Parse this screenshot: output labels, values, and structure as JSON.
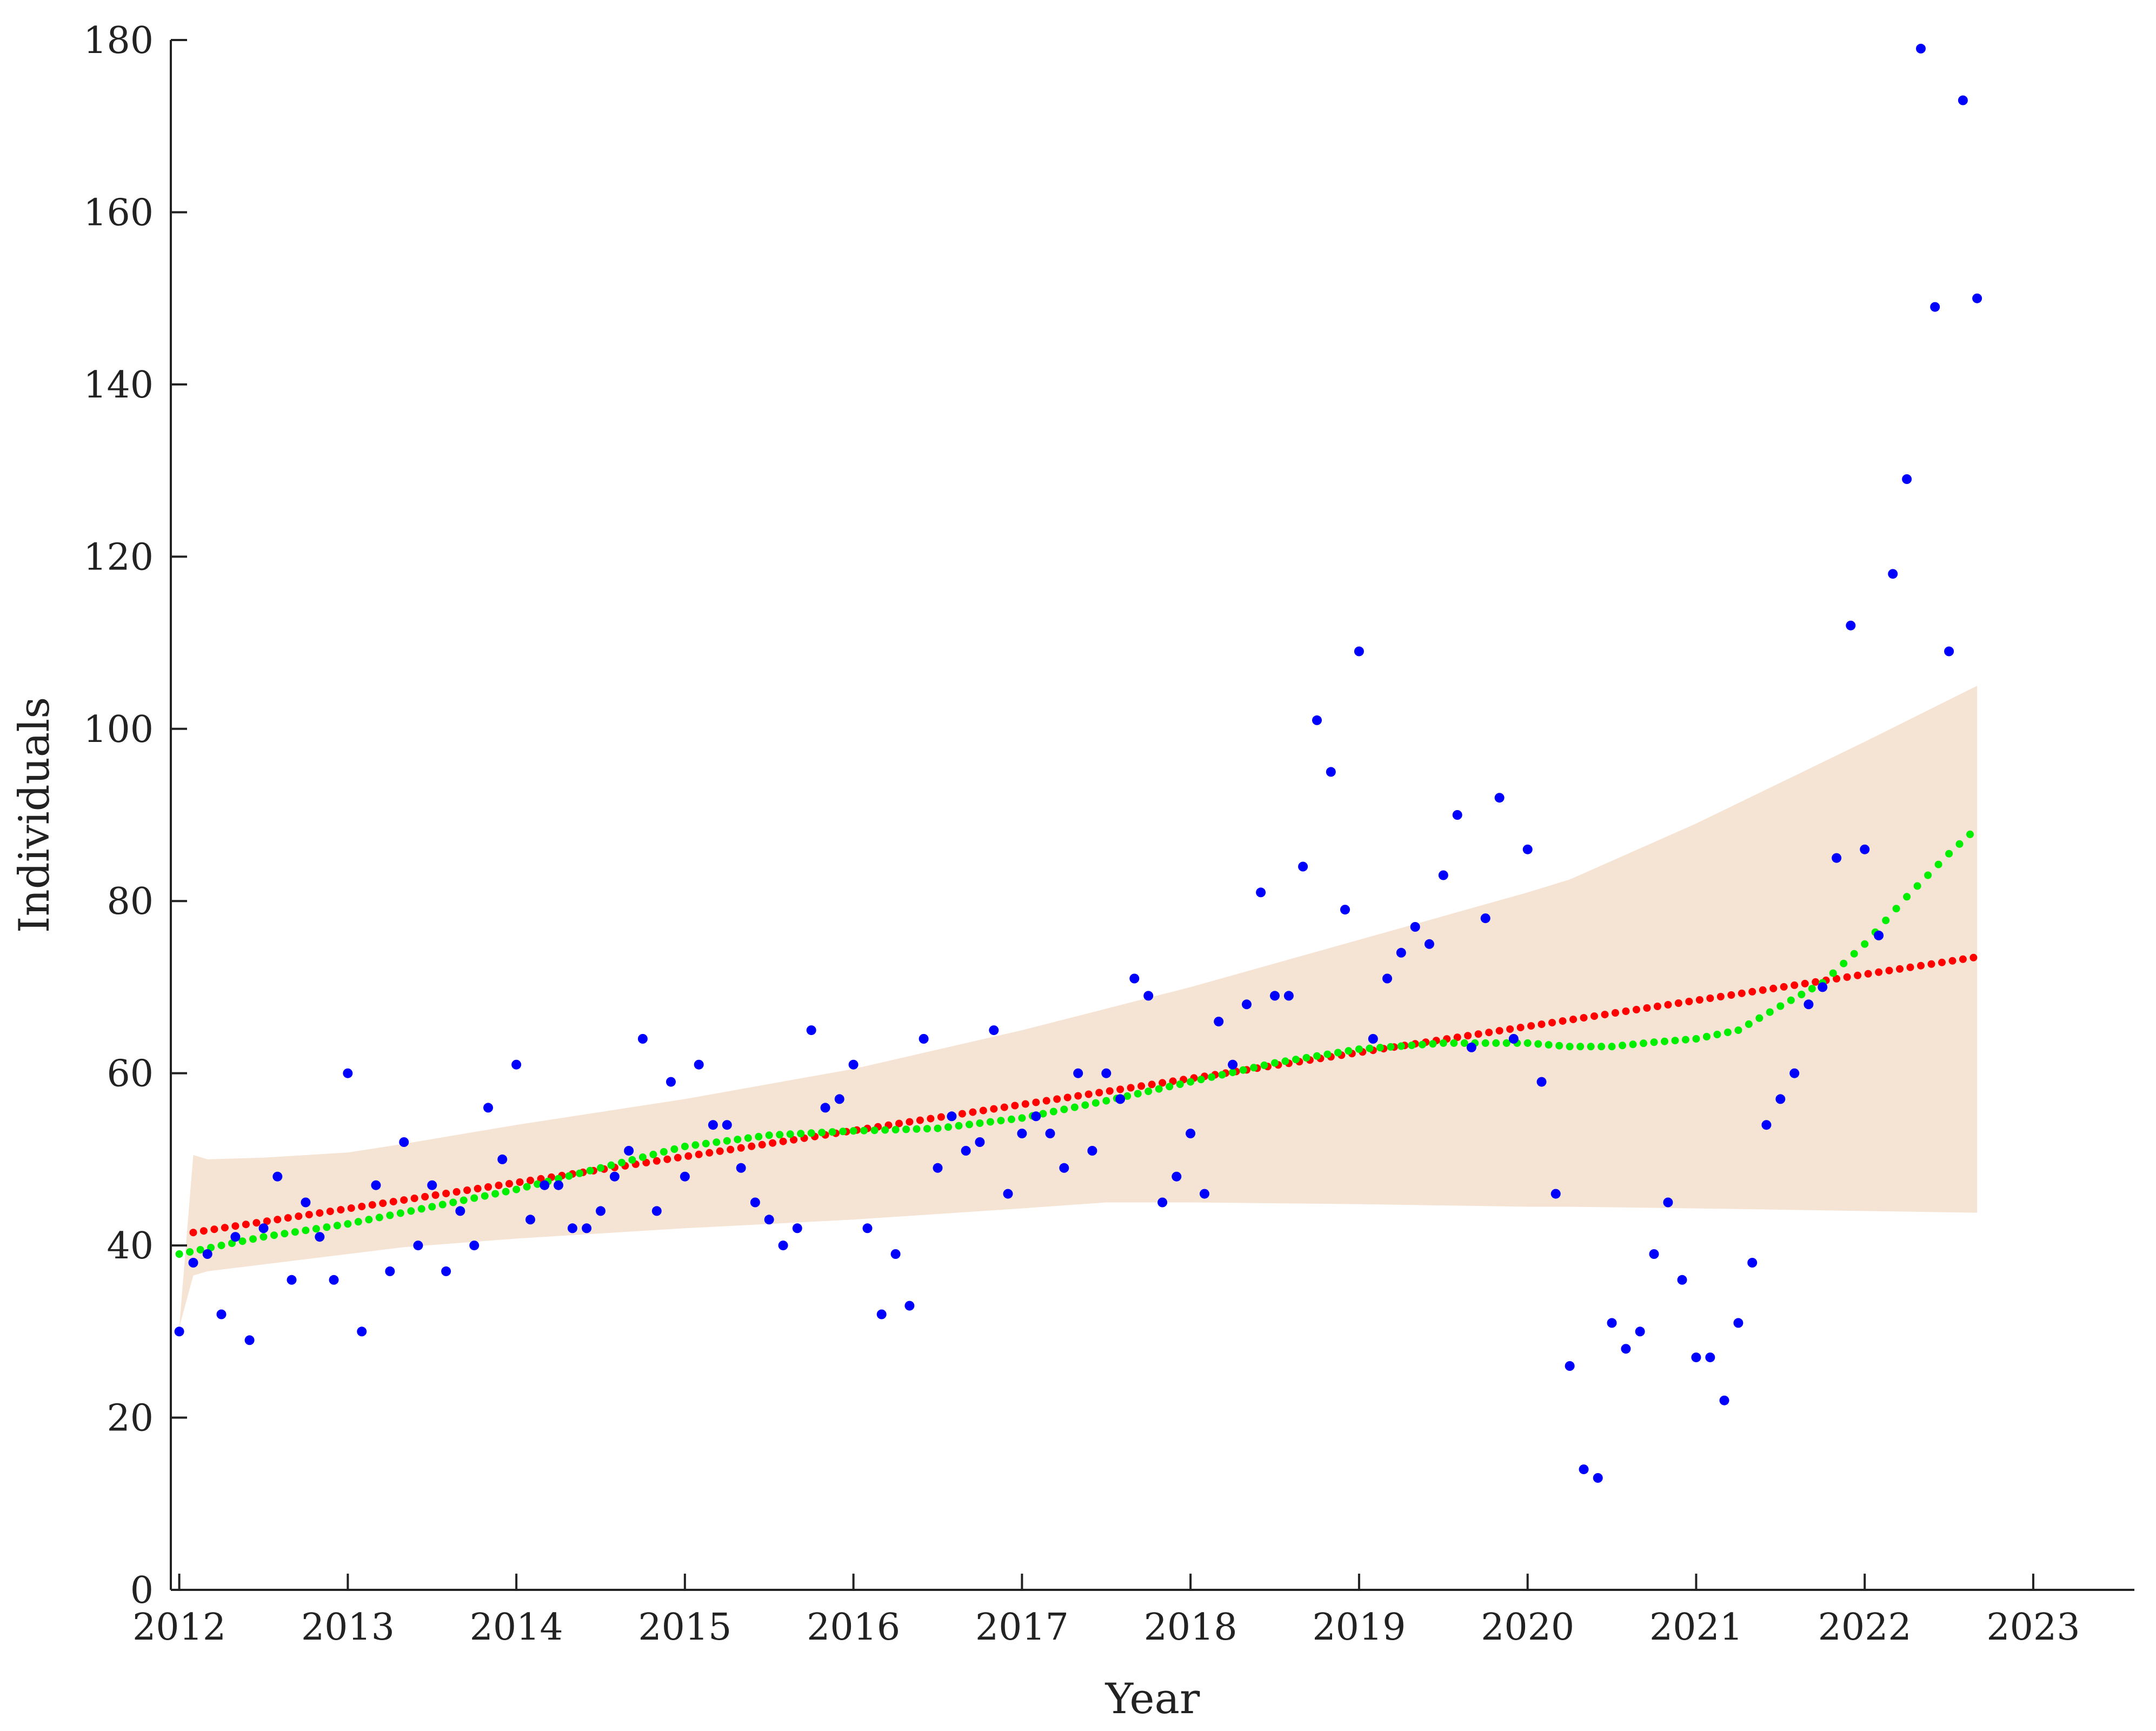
{
  "chart_data": {
    "type": "scatter",
    "title": "",
    "xlabel": "Year",
    "ylabel": "Individuals",
    "xlim": [
      2011.95,
      2023.6
    ],
    "ylim": [
      0,
      180
    ],
    "xticks": [
      2012,
      2013,
      2014,
      2015,
      2016,
      2017,
      2018,
      2019,
      2020,
      2021,
      2022,
      2023
    ],
    "yticks": [
      0,
      20,
      40,
      60,
      80,
      100,
      120,
      140,
      160,
      180
    ],
    "grid": false,
    "legend": "none",
    "colors": {
      "observed": "#0000ff",
      "linear_trend": "#ff0000",
      "smooth_trend": "#00ee00",
      "band": "#f5e3d3",
      "axis": "#222222"
    },
    "series": [
      {
        "kind": "points",
        "x": [
          2012.0,
          2012.083,
          2012.167,
          2012.25,
          2012.333,
          2012.417,
          2012.5,
          2012.583,
          2012.667,
          2012.75,
          2012.833,
          2012.917,
          2013.0,
          2013.083,
          2013.167,
          2013.25,
          2013.333,
          2013.417,
          2013.5,
          2013.583,
          2013.667,
          2013.75,
          2013.833,
          2013.917,
          2014.0,
          2014.083,
          2014.167,
          2014.25,
          2014.333,
          2014.417,
          2014.5,
          2014.583,
          2014.667,
          2014.75,
          2014.833,
          2014.917,
          2015.0,
          2015.083,
          2015.167,
          2015.25,
          2015.333,
          2015.417,
          2015.5,
          2015.583,
          2015.667,
          2015.75,
          2015.833,
          2015.917,
          2016.0,
          2016.083,
          2016.167,
          2016.25,
          2016.333,
          2016.417,
          2016.5,
          2016.583,
          2016.667,
          2016.75,
          2016.833,
          2016.917,
          2017.0,
          2017.083,
          2017.167,
          2017.25,
          2017.333,
          2017.417,
          2017.5,
          2017.583,
          2017.667,
          2017.75,
          2017.833,
          2017.917,
          2018.0,
          2018.083,
          2018.167,
          2018.25,
          2018.333,
          2018.417,
          2018.5,
          2018.583,
          2018.667,
          2018.75,
          2018.833,
          2018.917,
          2019.0,
          2019.083,
          2019.167,
          2019.25,
          2019.333,
          2019.417,
          2019.5,
          2019.583,
          2019.667,
          2019.75,
          2019.833,
          2019.917,
          2020.0,
          2020.083,
          2020.167,
          2020.25,
          2020.333,
          2020.417,
          2020.5,
          2020.583,
          2020.667,
          2020.75,
          2020.833,
          2020.917,
          2021.0,
          2021.083,
          2021.167,
          2021.25,
          2021.333,
          2021.417,
          2021.5,
          2021.583,
          2021.667,
          2021.75,
          2021.833,
          2021.917,
          2022.0,
          2022.083,
          2022.167,
          2022.25,
          2022.333,
          2022.417,
          2022.5,
          2022.583,
          2022.667
        ],
        "values": [
          30,
          38,
          39,
          32,
          41,
          29,
          42,
          48,
          36,
          45,
          41,
          36,
          60,
          30,
          47,
          37,
          52,
          40,
          47,
          37,
          44,
          40,
          56,
          50,
          61,
          43,
          47,
          47,
          42,
          42,
          44,
          48,
          51,
          64,
          44,
          59,
          48,
          61,
          54,
          54,
          49,
          45,
          43,
          40,
          42,
          65,
          56,
          57,
          61,
          42,
          32,
          39,
          33,
          64,
          49,
          55,
          51,
          52,
          65,
          46,
          53,
          55,
          53,
          49,
          60,
          51,
          60,
          57,
          71,
          69,
          45,
          48,
          53,
          46,
          66,
          61,
          68,
          81,
          69,
          69,
          84,
          101,
          95,
          79,
          109,
          64,
          71,
          74,
          77,
          75,
          83,
          90,
          63,
          78,
          92,
          64,
          86,
          59,
          46,
          26,
          14,
          13,
          31,
          28,
          30,
          39,
          45,
          36,
          27,
          27,
          22,
          31,
          38,
          54,
          57,
          60,
          68,
          70,
          85,
          112,
          86,
          76,
          118,
          129,
          179,
          149,
          109,
          173,
          150
        ]
      },
      {
        "kind": "linear",
        "x": [
          2012.083,
          2022.667
        ],
        "values": [
          41.5,
          73.5
        ]
      },
      {
        "kind": "smooth",
        "x": [
          2012.0,
          2012.5,
          2013.0,
          2013.5,
          2014.0,
          2014.5,
          2015.0,
          2015.5,
          2016.0,
          2016.5,
          2017.0,
          2017.5,
          2018.0,
          2018.5,
          2019.0,
          2019.5,
          2020.0,
          2020.25,
          2020.5,
          2020.75,
          2021.0,
          2021.25,
          2021.5,
          2021.75,
          2022.0,
          2022.25,
          2022.5,
          2022.667
        ],
        "values": [
          39,
          41,
          42.5,
          44.5,
          46.5,
          49,
          51.5,
          52.8,
          53.3,
          53.6,
          54.8,
          56.8,
          59,
          61.2,
          62.8,
          63.5,
          63.5,
          63.1,
          63.1,
          63.6,
          64,
          65,
          67.8,
          70.5,
          75,
          80.5,
          85.5,
          88.5
        ]
      },
      {
        "kind": "band",
        "x": [
          2012.0,
          2012.083,
          2012.167,
          2012.5,
          2013.0,
          2013.333,
          2014.0,
          2015.0,
          2016.0,
          2017.0,
          2017.5,
          2018.0,
          2019.0,
          2020.0,
          2020.25,
          2021.0,
          2022.0,
          2022.667
        ],
        "upper": [
          30.5,
          50.5,
          50,
          50.2,
          50.8,
          51.8,
          54,
          57,
          60.5,
          65,
          67.5,
          70,
          75.5,
          81,
          82.5,
          89,
          98.5,
          105
        ],
        "lower": [
          30.5,
          36.5,
          37,
          37.8,
          39,
          39.8,
          40.8,
          42,
          43,
          44.3,
          45,
          45,
          44.8,
          44.5,
          44.5,
          44.3,
          44,
          43.8
        ]
      }
    ]
  }
}
